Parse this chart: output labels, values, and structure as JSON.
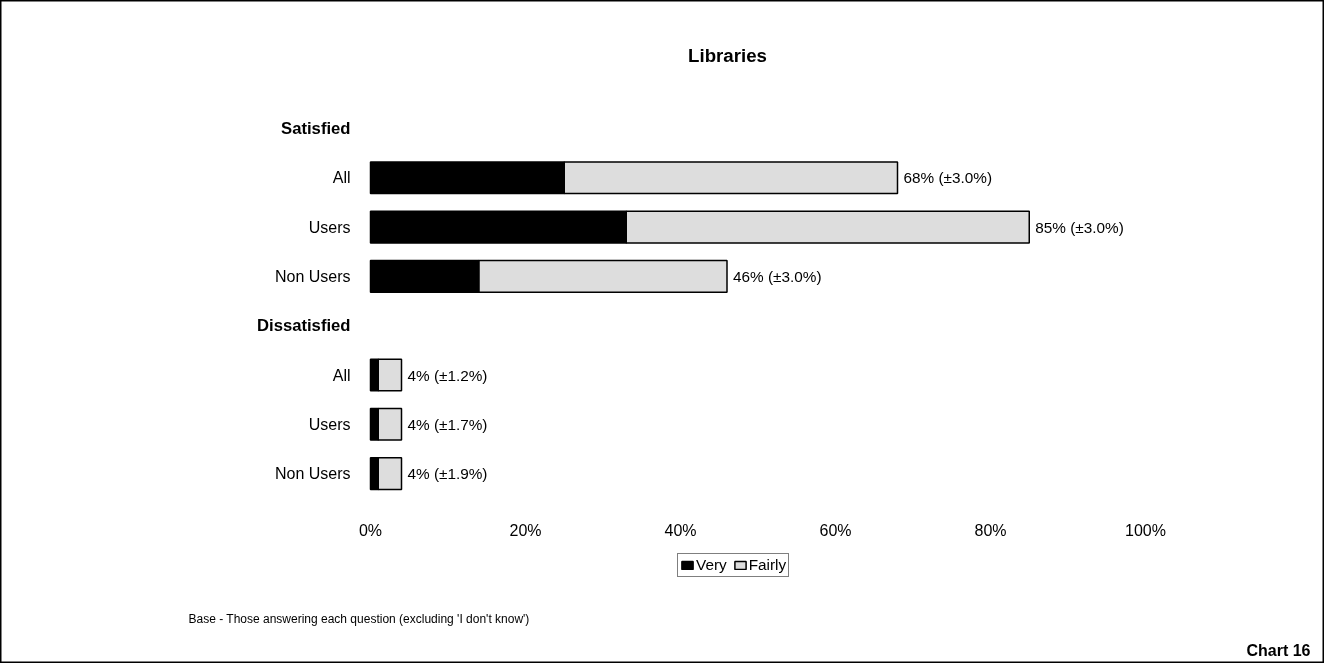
{
  "chart_data": {
    "type": "bar",
    "orientation": "horizontal",
    "stacked": true,
    "title": "Libraries",
    "categories": [
      "Satisfied",
      "All",
      "Users",
      "Non Users",
      "Dissatisfied",
      "All",
      "Users",
      "Non Users"
    ],
    "series": [
      {
        "name": "Very",
        "color": "#000000",
        "values": [
          null,
          25,
          33,
          14,
          null,
          1,
          1,
          1
        ]
      },
      {
        "name": "Fairly",
        "color": "#dddddd",
        "values": [
          null,
          43,
          52,
          32,
          null,
          3,
          3,
          3
        ]
      }
    ],
    "totals": [
      null,
      "68% (±3.0%)",
      "85% (±3.0%)",
      "46% (±3.0%)",
      null,
      "4%  (±1.2%)",
      "4%  (±1.7%)",
      "4%  (±1.9%)"
    ],
    "xlim": [
      0,
      100
    ],
    "xticks": [
      {
        "value": 0,
        "label": "0%"
      },
      {
        "value": 20,
        "label": "20%"
      },
      {
        "value": 40,
        "label": "40%"
      },
      {
        "value": 60,
        "label": "60%"
      },
      {
        "value": 80,
        "label": "80%"
      },
      {
        "value": 100,
        "label": "100%"
      }
    ],
    "legend": "bottom",
    "grid": false,
    "annotations": [
      "Base - Those answering each question (excluding 'I don't know')",
      "Chart 16"
    ]
  }
}
